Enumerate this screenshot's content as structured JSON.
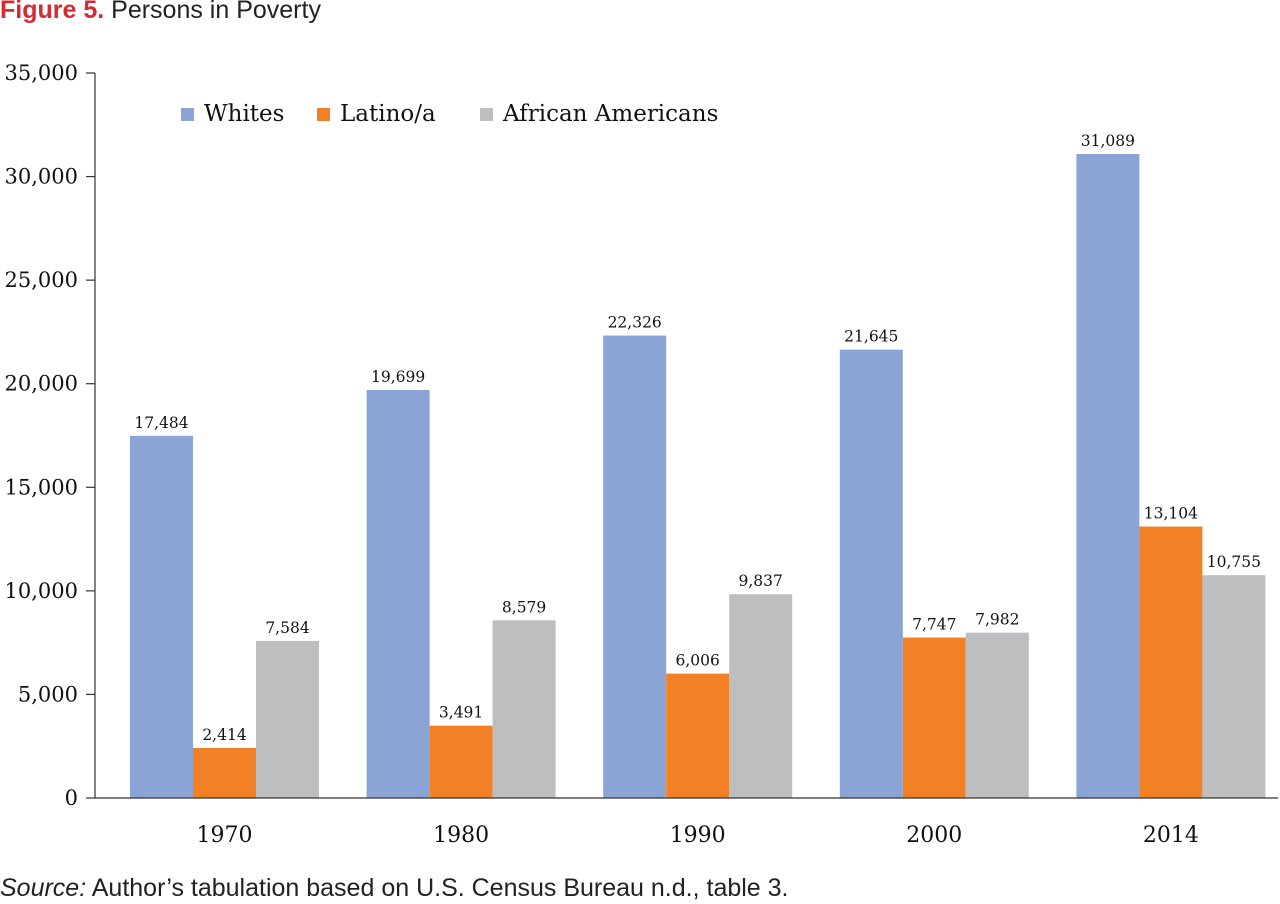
{
  "figure": {
    "label": "Figure 5.",
    "title": "Persons in Poverty"
  },
  "source": {
    "label": "Source:",
    "text": "Author’s tabulation based on U.S. Census Bureau n.d., table 3."
  },
  "colors": {
    "Whites": "#8aa5d5",
    "Latino/a": "#f28126",
    "African Americans": "#bcbec0",
    "title_accent": "#d62b33"
  },
  "chart_data": {
    "type": "bar",
    "categories": [
      "1970",
      "1980",
      "1990",
      "2000",
      "2014"
    ],
    "series": [
      {
        "name": "Whites",
        "values": [
          17484,
          19699,
          22326,
          21645,
          31089
        ],
        "labels": [
          "17,484",
          "19,699",
          "22,326",
          "21,645",
          "31,089"
        ]
      },
      {
        "name": "Latino/a",
        "values": [
          2414,
          3491,
          6006,
          7747,
          13104
        ],
        "labels": [
          "2,414",
          "3,491",
          "6,006",
          "7,747",
          "13,104"
        ]
      },
      {
        "name": "African Americans",
        "values": [
          7584,
          8579,
          9837,
          7982,
          10755
        ],
        "labels": [
          "7,584",
          "8,579",
          "9,837",
          "7,982",
          "10,755"
        ]
      }
    ],
    "title": "Persons in Poverty",
    "xlabel": "",
    "ylabel": "",
    "ylim": [
      0,
      35000
    ],
    "yticks": [
      0,
      5000,
      10000,
      15000,
      20000,
      25000,
      30000,
      35000
    ],
    "ytick_labels": [
      "0",
      "5,000",
      "10,000",
      "15,000",
      "20,000",
      "25,000",
      "30,000",
      "35,000"
    ],
    "grid": false,
    "legend": "top-left"
  }
}
